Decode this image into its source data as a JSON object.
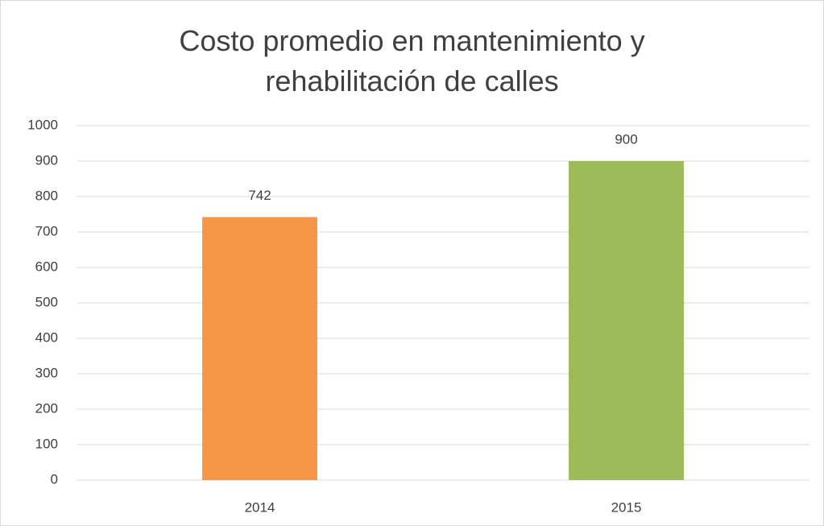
{
  "chart_data": {
    "type": "bar",
    "title": "Costo promedio en mantenimiento y rehabilitación de calles",
    "categories": [
      "2014",
      "2015"
    ],
    "values": [
      742,
      900
    ],
    "colors": [
      "#f79646",
      "#9bbb59"
    ],
    "ylim": [
      0,
      1000
    ],
    "yticks": [
      0,
      100,
      200,
      300,
      400,
      500,
      600,
      700,
      800,
      900,
      1000
    ],
    "grid": true,
    "data_labels": true
  }
}
